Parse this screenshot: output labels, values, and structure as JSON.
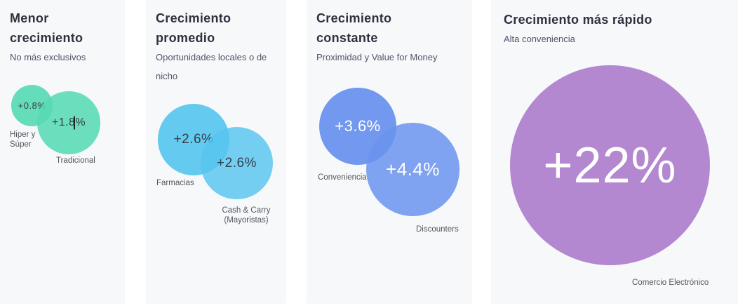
{
  "colors": {
    "page_bg": "#ffffff",
    "panel_bg": "#f7f8fa",
    "title": "#30303f",
    "subtitle": "#53536a",
    "label": "#55555f",
    "mint": "#58d9b4",
    "cyan": "#57c5ef",
    "blue": "#6a93ee",
    "purple": "#af82cd",
    "value_dark": "#33404a",
    "value_light": "#ffffff"
  },
  "panels": [
    {
      "title": "Menor crecimiento",
      "subtitle": "No más exclusivos",
      "bubbles": [
        {
          "value": "+0.8%",
          "label": "Hiper y Súper",
          "growth_pct": 0.8
        },
        {
          "value": "+1.8%",
          "label": "Tradicional",
          "growth_pct": 1.8,
          "has_text_cursor": true
        }
      ]
    },
    {
      "title": "Crecimiento promedio",
      "subtitle": "Oportunidades locales o de nicho",
      "bubbles": [
        {
          "value": "+2.6%",
          "label": "Farmacias",
          "growth_pct": 2.6
        },
        {
          "value": "+2.6%",
          "label": "Cash & Carry (Mayoristas)",
          "growth_pct": 2.6
        }
      ]
    },
    {
      "title": "Crecimiento constante",
      "subtitle": "Proximidad y Value for Money",
      "bubbles": [
        {
          "value": "+3.6%",
          "label": "Conveniencia",
          "growth_pct": 3.6
        },
        {
          "value": "+4.4%",
          "label": "Discounters",
          "growth_pct": 4.4
        }
      ]
    },
    {
      "title": "Crecimiento más rápido",
      "subtitle": "Alta conveniencia",
      "bubbles": [
        {
          "value": "+22%",
          "label": "Comercio Electrónico",
          "growth_pct": 22
        }
      ]
    }
  ],
  "chart_data": {
    "type": "bubble",
    "title": "",
    "legend": "none",
    "value_unit": "percent growth",
    "groups": [
      {
        "group": "Menor crecimiento",
        "description": "No más exclusivos",
        "color": "#58d9b4",
        "points": [
          {
            "label": "Hiper y Súper",
            "growth_pct": 0.8
          },
          {
            "label": "Tradicional",
            "growth_pct": 1.8
          }
        ]
      },
      {
        "group": "Crecimiento promedio",
        "description": "Oportunidades locales o de nicho",
        "color": "#57c5ef",
        "points": [
          {
            "label": "Farmacias",
            "growth_pct": 2.6
          },
          {
            "label": "Cash & Carry (Mayoristas)",
            "growth_pct": 2.6
          }
        ]
      },
      {
        "group": "Crecimiento constante",
        "description": "Proximidad y Value for Money",
        "color": "#6a93ee",
        "points": [
          {
            "label": "Conveniencia",
            "growth_pct": 3.6
          },
          {
            "label": "Discounters",
            "growth_pct": 4.4
          }
        ]
      },
      {
        "group": "Crecimiento más rápido",
        "description": "Alta conveniencia",
        "color": "#af82cd",
        "points": [
          {
            "label": "Comercio Electrónico",
            "growth_pct": 22
          }
        ]
      }
    ]
  }
}
